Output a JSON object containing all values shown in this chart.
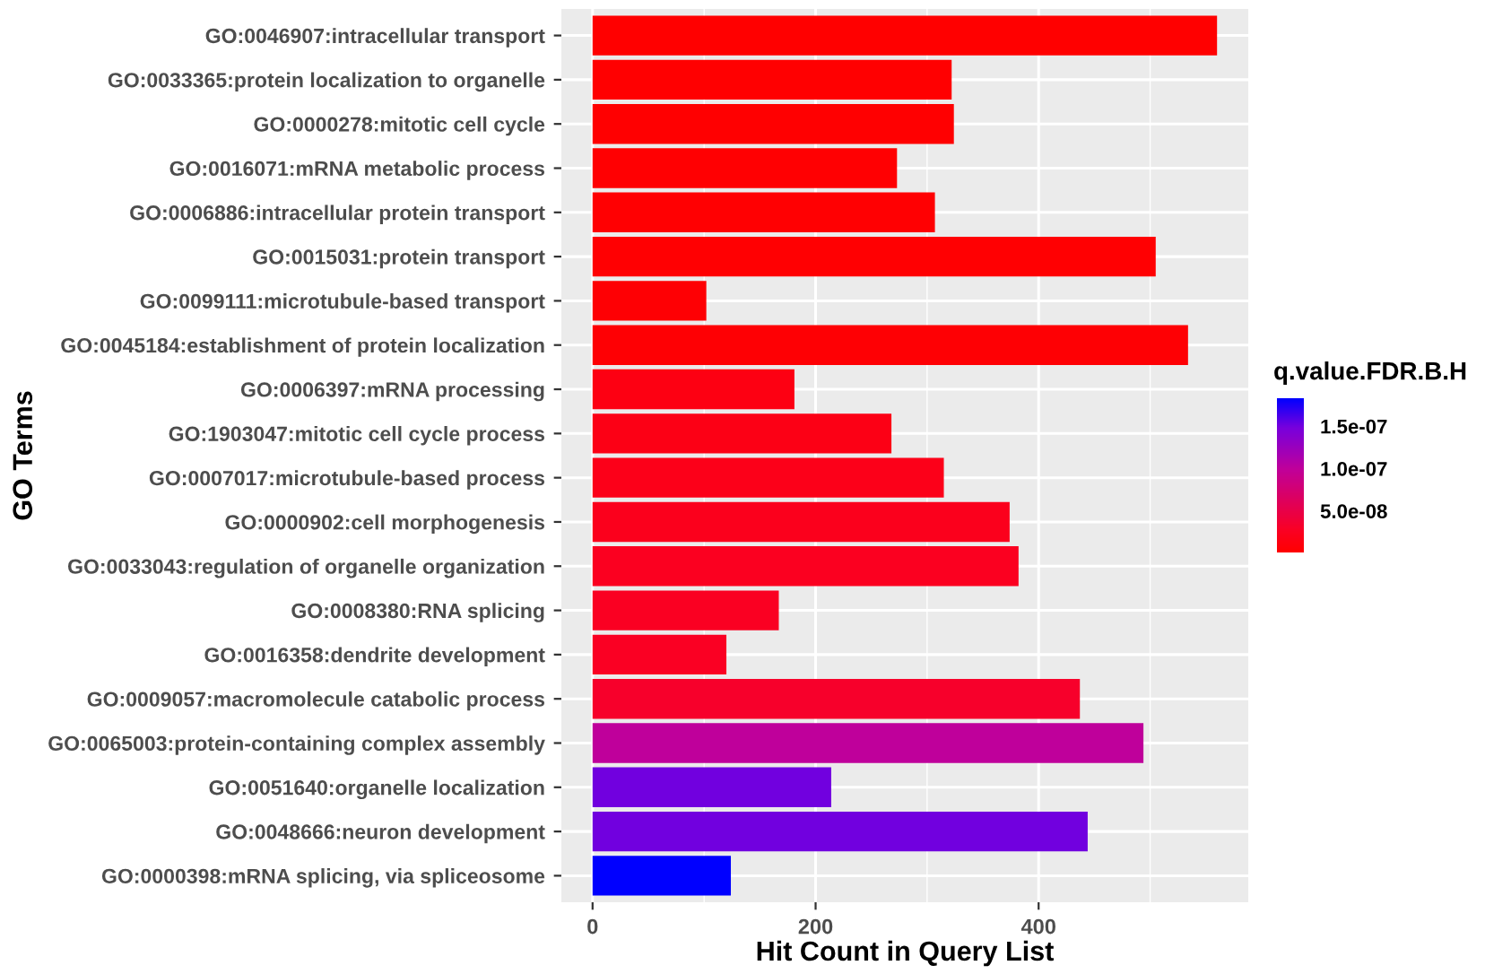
{
  "chart_data": {
    "type": "bar",
    "orientation": "horizontal",
    "xlabel": "Hit Count in Query List",
    "ylabel": "GO Terms",
    "clabel": "q.value.FDR.B.H",
    "categories": [
      "GO:0046907:intracellular transport",
      "GO:0033365:protein localization to organelle",
      "GO:0000278:mitotic cell cycle",
      "GO:0016071:mRNA metabolic process",
      "GO:0006886:intracellular protein transport",
      "GO:0015031:protein transport",
      "GO:0099111:microtubule-based transport",
      "GO:0045184:establishment of protein localization",
      "GO:0006397:mRNA processing",
      "GO:1903047:mitotic cell cycle process",
      "GO:0007017:microtubule-based process",
      "GO:0000902:cell morphogenesis",
      "GO:0033043:regulation of organelle organization",
      "GO:0008380:RNA splicing",
      "GO:0016358:dendrite development",
      "GO:0009057:macromolecule catabolic process",
      "GO:0065003:protein-containing complex assembly",
      "GO:0051640:organelle localization",
      "GO:0048666:neuron development",
      "GO:0000398:mRNA splicing, via spliceosome"
    ],
    "values": [
      560,
      322,
      324,
      273,
      307,
      505,
      102,
      534,
      181,
      268,
      315,
      374,
      382,
      167,
      120,
      437,
      494,
      214,
      444,
      124
    ],
    "cvalues": [
      1e-09,
      2e-09,
      2e-09,
      3e-09,
      3e-09,
      3e-09,
      4e-09,
      4e-09,
      1.5e-08,
      1.7e-08,
      2e-08,
      2.2e-08,
      2.5e-08,
      2.6e-08,
      2.7e-08,
      3.2e-08,
      1e-07,
      1.5e-07,
      1.5e-07,
      1.83e-07
    ],
    "clim": [
      1e-09,
      1.83e-07
    ],
    "cticks": [
      {
        "value": 5e-08,
        "label": "5.0e-08"
      },
      {
        "value": 1e-07,
        "label": "1.0e-07"
      },
      {
        "value": 1.5e-07,
        "label": "1.5e-07"
      }
    ],
    "xlim": [
      -28,
      588
    ],
    "xticks": [
      0,
      {
        "value": 100,
        "label": null
      },
      200,
      {
        "value": 300,
        "label": null
      },
      400,
      {
        "value": 500,
        "label": null
      }
    ],
    "grid": true,
    "legend": false
  }
}
